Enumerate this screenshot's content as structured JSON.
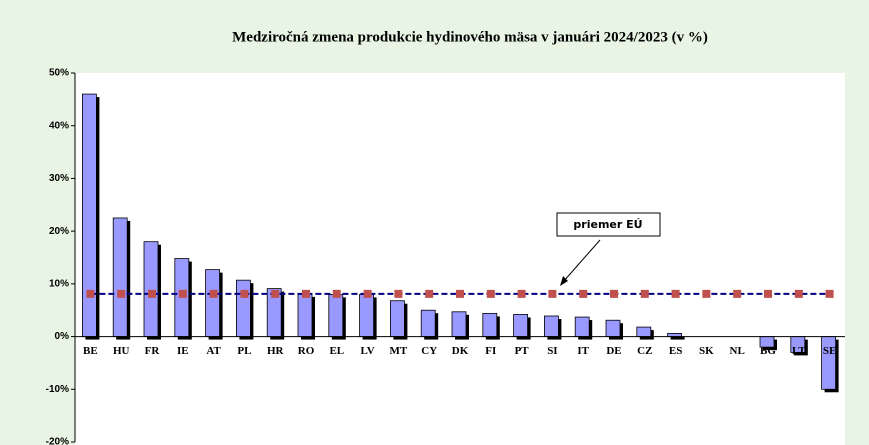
{
  "chart_data": {
    "type": "bar",
    "title": "Medziročná zmena produkcie hydinového mäsa v januári 2024/2023 (v %)",
    "categories": [
      "BE",
      "HU",
      "FR",
      "IE",
      "AT",
      "PL",
      "HR",
      "RO",
      "EL",
      "LV",
      "MT",
      "CY",
      "DK",
      "FI",
      "PT",
      "SI",
      "IT",
      "DE",
      "CZ",
      "ES",
      "SK",
      "NL",
      "BG",
      "LT",
      "SE"
    ],
    "values": [
      46,
      22.5,
      18,
      14.8,
      12.7,
      10.7,
      9.1,
      8.1,
      8.0,
      8.0,
      6.8,
      5.0,
      4.7,
      4.4,
      4.2,
      3.9,
      3.7,
      3.1,
      1.8,
      0.6,
      0,
      0,
      -2,
      -3,
      -10
    ],
    "color": "#9999ff",
    "average_line": {
      "label": "priemer EÚ",
      "color": "#c0504d",
      "line_color": "#000080",
      "values": [
        8.1,
        8.1,
        8.1,
        8.1,
        8.1,
        8.1,
        8.1,
        8.1,
        8.1,
        8.1,
        8.1,
        8.1,
        8.1,
        8.1,
        8.1,
        8.1,
        8.1,
        8.1,
        8.1,
        8.1,
        8.1,
        8.1,
        8.1,
        8.1,
        8.1
      ]
    },
    "ylim": [
      -20,
      50
    ],
    "yticks": [
      {
        "value": -20,
        "label": "-20%"
      },
      {
        "value": -10,
        "label": "-10%"
      },
      {
        "value": 0,
        "label": "0%"
      },
      {
        "value": 10,
        "label": "10%"
      },
      {
        "value": 20,
        "label": "20%"
      },
      {
        "value": 30,
        "label": "30%"
      },
      {
        "value": 40,
        "label": "40%"
      },
      {
        "value": 50,
        "label": "50%"
      }
    ],
    "grid": false
  }
}
